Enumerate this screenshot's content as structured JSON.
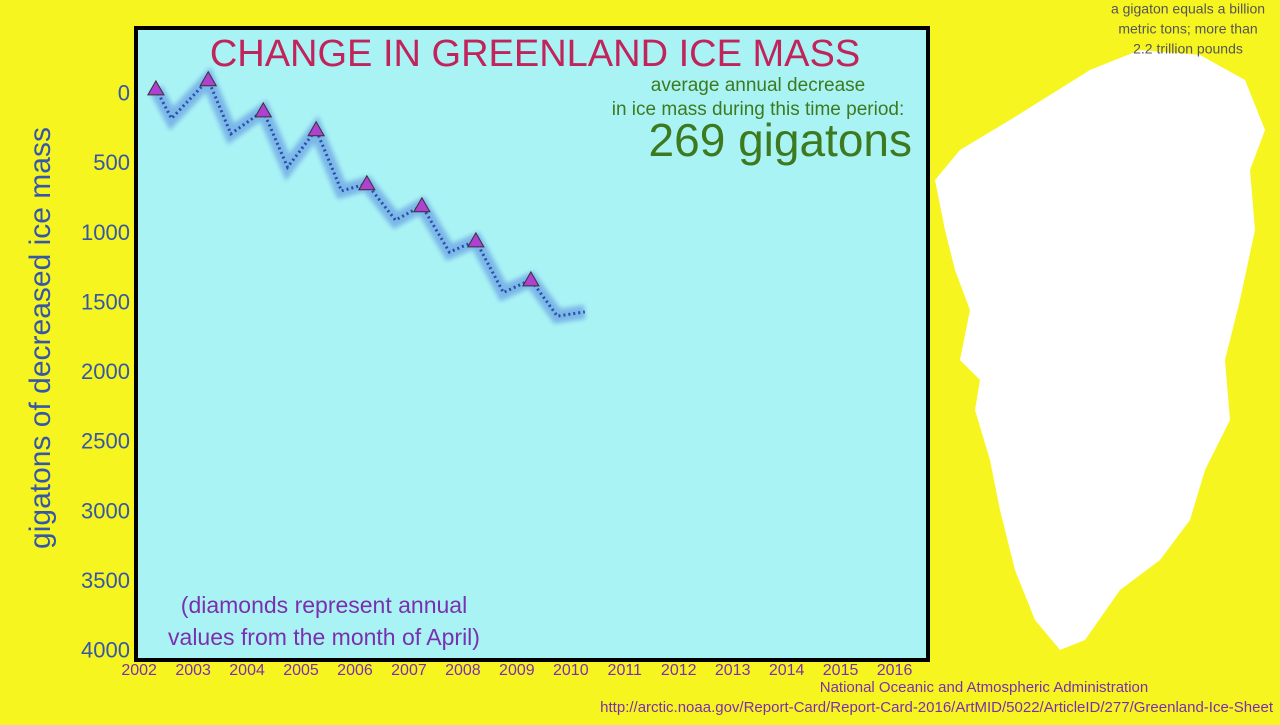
{
  "chart_data": {
    "type": "line",
    "title": "CHANGE IN GREENLAND ICE MASS",
    "subtitle": [
      "average annual decrease",
      "in ice mass during this time period:"
    ],
    "headline": "269 gigatons",
    "y_label": "gigatons of decreased ice mass",
    "note": [
      "(diamonds represent annual",
      "values from the month of April)"
    ],
    "side_note": [
      "a gigaton equals a billion",
      "metric tons; more than",
      "2.2 trillion pounds"
    ],
    "source": [
      "National Oceanic and Atmospheric Administration",
      "http://arctic.noaa.gov/Report-Card/Report-Card-2016/ArtMID/5022/ArticleID/277/Greenland-Ice-Sheet"
    ],
    "xlim": [
      2001.96,
      2016.62
    ],
    "xticks": [
      2002,
      2003,
      2004,
      2005,
      2006,
      2007,
      2008,
      2009,
      2010,
      2011,
      2012,
      2013,
      2014,
      2015,
      2016
    ],
    "ylim": [
      -480,
      4060
    ],
    "y_inverted": true,
    "yticks": [
      0,
      500,
      1000,
      1500,
      2000,
      2500,
      3000,
      3500,
      4000
    ],
    "series": [
      {
        "color": "#5b8fe0",
        "marker": "none",
        "x": [
          2002.31,
          2002.6,
          2003.28,
          2003.7,
          2004.3,
          2004.75,
          2005.28,
          2005.75,
          2006.22,
          2006.75,
          2007.24,
          2007.75,
          2008.24,
          2008.75,
          2009.26,
          2009.75,
          2010.26
        ],
        "values": [
          -43,
          170,
          -108,
          280,
          115,
          520,
          251,
          690,
          639,
          900,
          797,
          1130,
          1049,
          1420,
          1329,
          1590,
          1559
        ]
      },
      {
        "color": "#b040d0",
        "marker": "triangle",
        "x": [
          2002.31,
          2003.28,
          2004.3,
          2005.28,
          2006.22,
          2007.24,
          2008.24,
          2009.26
        ],
        "values": [
          -43,
          -108,
          115,
          251,
          639,
          797,
          1049,
          1329
        ]
      }
    ]
  }
}
